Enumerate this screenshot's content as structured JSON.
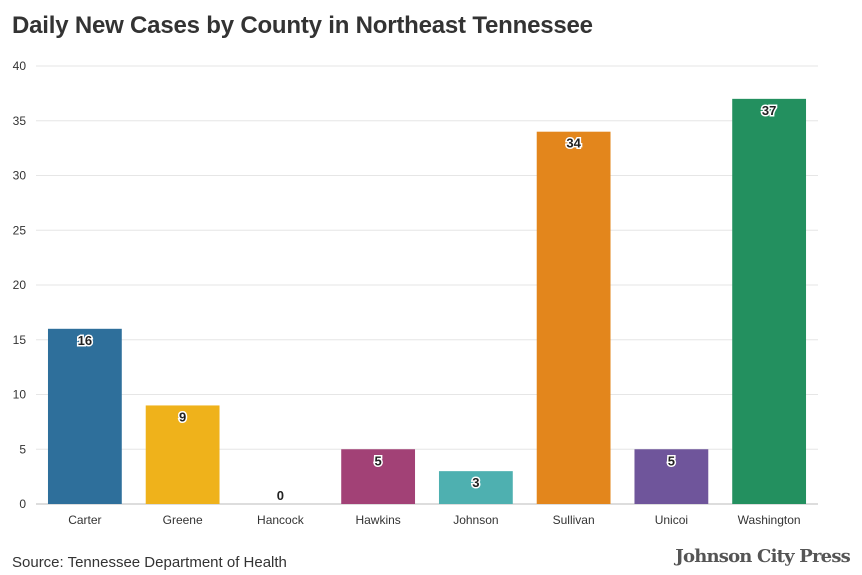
{
  "title": "Daily New Cases by County in Northeast Tennessee",
  "source": "Source: Tennessee Department of Health",
  "logo_text": "Johnson City Press",
  "chart_data": {
    "type": "bar",
    "categories": [
      "Carter",
      "Greene",
      "Hancock",
      "Hawkins",
      "Johnson",
      "Sullivan",
      "Unicoi",
      "Washington"
    ],
    "values": [
      16,
      9,
      0,
      5,
      3,
      34,
      5,
      37
    ],
    "colors": [
      "#2e6f9b",
      "#efb21b",
      "#bbbbbb",
      "#a24176",
      "#4eb0b0",
      "#e3861c",
      "#6f559b",
      "#23905f"
    ],
    "title": "Daily New Cases by County in Northeast Tennessee",
    "xlabel": "",
    "ylabel": "",
    "ylim": [
      0,
      40
    ],
    "yticks": [
      0,
      5,
      10,
      15,
      20,
      25,
      30,
      35,
      40
    ],
    "grid": true,
    "show_data_labels": true
  }
}
